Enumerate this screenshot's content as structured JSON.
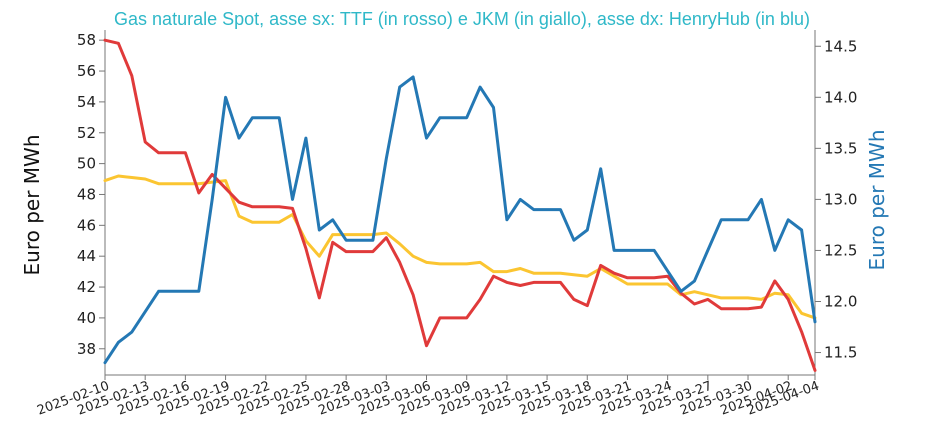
{
  "chart_data": {
    "type": "line",
    "title": "Gas naturale Spot, asse sx: TTF (in rosso) e JKM (in giallo), asse dx: HenryHub (in blu)",
    "ylabel": "Euro per MWh",
    "ylabel_right": "Euro per MWh",
    "ylim": [
      36.3,
      58.4
    ],
    "ylim_right": [
      11.28,
      14.62
    ],
    "yticks": [
      "38",
      "40",
      "42",
      "44",
      "46",
      "48",
      "50",
      "52",
      "54",
      "56",
      "58"
    ],
    "yticks_right": [
      "11.5",
      "12.0",
      "12.5",
      "13.0",
      "13.5",
      "14.0",
      "14.5"
    ],
    "xticks": [
      "2025-02-10",
      "2025-02-13",
      "2025-02-16",
      "2025-02-19",
      "2025-02-22",
      "2025-02-25",
      "2025-02-28",
      "2025-03-03",
      "2025-03-06",
      "2025-03-09",
      "2025-03-12",
      "2025-03-15",
      "2025-03-18",
      "2025-03-21",
      "2025-03-24",
      "2025-03-27",
      "2025-03-30",
      "2025-04-02",
      "2025-04-04"
    ],
    "x_range": [
      "2025-02-10",
      "2025-04-04"
    ],
    "grid": false,
    "colors": {
      "ttf": "#e03a3a",
      "jkm": "#fbc531",
      "henryhub": "#2478b4",
      "title": "#2fb8c8"
    },
    "series": [
      {
        "key": "ttf",
        "axis": "left",
        "points": [
          [
            "2025-02-10",
            58.0
          ],
          [
            "2025-02-11",
            57.8
          ],
          [
            "2025-02-12",
            55.7
          ],
          [
            "2025-02-13",
            51.4
          ],
          [
            "2025-02-14",
            50.7
          ],
          [
            "2025-02-15",
            50.7
          ],
          [
            "2025-02-16",
            50.7
          ],
          [
            "2025-02-17",
            48.1
          ],
          [
            "2025-02-18",
            49.3
          ],
          [
            "2025-02-19",
            48.4
          ],
          [
            "2025-02-20",
            47.5
          ],
          [
            "2025-02-21",
            47.2
          ],
          [
            "2025-02-22",
            47.2
          ],
          [
            "2025-02-23",
            47.2
          ],
          [
            "2025-02-24",
            47.1
          ],
          [
            "2025-02-25",
            44.5
          ],
          [
            "2025-02-26",
            41.3
          ],
          [
            "2025-02-27",
            44.9
          ],
          [
            "2025-02-28",
            44.3
          ],
          [
            "2025-03-01",
            44.3
          ],
          [
            "2025-03-02",
            44.3
          ],
          [
            "2025-03-03",
            45.2
          ],
          [
            "2025-03-04",
            43.6
          ],
          [
            "2025-03-05",
            41.5
          ],
          [
            "2025-03-06",
            38.2
          ],
          [
            "2025-03-07",
            40.0
          ],
          [
            "2025-03-08",
            40.0
          ],
          [
            "2025-03-09",
            40.0
          ],
          [
            "2025-03-10",
            41.2
          ],
          [
            "2025-03-11",
            42.7
          ],
          [
            "2025-03-12",
            42.3
          ],
          [
            "2025-03-13",
            42.1
          ],
          [
            "2025-03-14",
            42.3
          ],
          [
            "2025-03-15",
            42.3
          ],
          [
            "2025-03-16",
            42.3
          ],
          [
            "2025-03-17",
            41.2
          ],
          [
            "2025-03-18",
            40.8
          ],
          [
            "2025-03-19",
            43.4
          ],
          [
            "2025-03-20",
            42.9
          ],
          [
            "2025-03-21",
            42.6
          ],
          [
            "2025-03-22",
            42.6
          ],
          [
            "2025-03-23",
            42.6
          ],
          [
            "2025-03-24",
            42.7
          ],
          [
            "2025-03-25",
            41.6
          ],
          [
            "2025-03-26",
            40.9
          ],
          [
            "2025-03-27",
            41.2
          ],
          [
            "2025-03-28",
            40.6
          ],
          [
            "2025-03-29",
            40.6
          ],
          [
            "2025-03-30",
            40.6
          ],
          [
            "2025-03-31",
            40.7
          ],
          [
            "2025-04-01",
            42.4
          ],
          [
            "2025-04-02",
            41.2
          ],
          [
            "2025-04-03",
            39.1
          ],
          [
            "2025-04-04",
            36.6
          ]
        ]
      },
      {
        "key": "jkm",
        "axis": "left",
        "points": [
          [
            "2025-02-10",
            48.9
          ],
          [
            "2025-02-11",
            49.2
          ],
          [
            "2025-02-12",
            49.1
          ],
          [
            "2025-02-13",
            49.0
          ],
          [
            "2025-02-14",
            48.7
          ],
          [
            "2025-02-15",
            48.7
          ],
          [
            "2025-02-16",
            48.7
          ],
          [
            "2025-02-17",
            48.7
          ],
          [
            "2025-02-18",
            48.8
          ],
          [
            "2025-02-19",
            48.9
          ],
          [
            "2025-02-20",
            46.6
          ],
          [
            "2025-02-21",
            46.2
          ],
          [
            "2025-02-22",
            46.2
          ],
          [
            "2025-02-23",
            46.2
          ],
          [
            "2025-02-24",
            46.7
          ],
          [
            "2025-02-25",
            45.0
          ],
          [
            "2025-02-26",
            44.0
          ],
          [
            "2025-02-27",
            45.4
          ],
          [
            "2025-02-28",
            45.4
          ],
          [
            "2025-03-01",
            45.4
          ],
          [
            "2025-03-02",
            45.4
          ],
          [
            "2025-03-03",
            45.5
          ],
          [
            "2025-03-04",
            44.8
          ],
          [
            "2025-03-05",
            44.0
          ],
          [
            "2025-03-06",
            43.6
          ],
          [
            "2025-03-07",
            43.5
          ],
          [
            "2025-03-08",
            43.5
          ],
          [
            "2025-03-09",
            43.5
          ],
          [
            "2025-03-10",
            43.6
          ],
          [
            "2025-03-11",
            43.0
          ],
          [
            "2025-03-12",
            43.0
          ],
          [
            "2025-03-13",
            43.2
          ],
          [
            "2025-03-14",
            42.9
          ],
          [
            "2025-03-15",
            42.9
          ],
          [
            "2025-03-16",
            42.9
          ],
          [
            "2025-03-17",
            42.8
          ],
          [
            "2025-03-18",
            42.7
          ],
          [
            "2025-03-19",
            43.2
          ],
          [
            "2025-03-20",
            42.7
          ],
          [
            "2025-03-21",
            42.2
          ],
          [
            "2025-03-22",
            42.2
          ],
          [
            "2025-03-23",
            42.2
          ],
          [
            "2025-03-24",
            42.2
          ],
          [
            "2025-03-25",
            41.5
          ],
          [
            "2025-03-26",
            41.7
          ],
          [
            "2025-03-27",
            41.5
          ],
          [
            "2025-03-28",
            41.3
          ],
          [
            "2025-03-29",
            41.3
          ],
          [
            "2025-03-30",
            41.3
          ],
          [
            "2025-03-31",
            41.2
          ],
          [
            "2025-04-01",
            41.6
          ],
          [
            "2025-04-02",
            41.5
          ],
          [
            "2025-04-03",
            40.3
          ],
          [
            "2025-04-04",
            40.0
          ]
        ]
      },
      {
        "key": "henryhub",
        "axis": "right",
        "points": [
          [
            "2025-02-10",
            11.4
          ],
          [
            "2025-02-11",
            11.6
          ],
          [
            "2025-02-12",
            11.7
          ],
          [
            "2025-02-13",
            11.9
          ],
          [
            "2025-02-14",
            12.1
          ],
          [
            "2025-02-15",
            12.1
          ],
          [
            "2025-02-16",
            12.1
          ],
          [
            "2025-02-17",
            12.1
          ],
          [
            "2025-02-18",
            13.0
          ],
          [
            "2025-02-19",
            14.0
          ],
          [
            "2025-02-20",
            13.6
          ],
          [
            "2025-02-21",
            13.8
          ],
          [
            "2025-02-22",
            13.8
          ],
          [
            "2025-02-23",
            13.8
          ],
          [
            "2025-02-24",
            13.0
          ],
          [
            "2025-02-25",
            13.6
          ],
          [
            "2025-02-26",
            12.7
          ],
          [
            "2025-02-27",
            12.8
          ],
          [
            "2025-02-28",
            12.6
          ],
          [
            "2025-03-01",
            12.6
          ],
          [
            "2025-03-02",
            12.6
          ],
          [
            "2025-03-03",
            13.4
          ],
          [
            "2025-03-04",
            14.1
          ],
          [
            "2025-03-05",
            14.2
          ],
          [
            "2025-03-06",
            13.6
          ],
          [
            "2025-03-07",
            13.8
          ],
          [
            "2025-03-08",
            13.8
          ],
          [
            "2025-03-09",
            13.8
          ],
          [
            "2025-03-10",
            14.1
          ],
          [
            "2025-03-11",
            13.9
          ],
          [
            "2025-03-12",
            12.8
          ],
          [
            "2025-03-13",
            13.0
          ],
          [
            "2025-03-14",
            12.9
          ],
          [
            "2025-03-15",
            12.9
          ],
          [
            "2025-03-16",
            12.9
          ],
          [
            "2025-03-17",
            12.6
          ],
          [
            "2025-03-18",
            12.7
          ],
          [
            "2025-03-19",
            13.3
          ],
          [
            "2025-03-20",
            12.5
          ],
          [
            "2025-03-21",
            12.5
          ],
          [
            "2025-03-22",
            12.5
          ],
          [
            "2025-03-23",
            12.5
          ],
          [
            "2025-03-24",
            12.3
          ],
          [
            "2025-03-25",
            12.1
          ],
          [
            "2025-03-26",
            12.2
          ],
          [
            "2025-03-27",
            12.5
          ],
          [
            "2025-03-28",
            12.8
          ],
          [
            "2025-03-29",
            12.8
          ],
          [
            "2025-03-30",
            12.8
          ],
          [
            "2025-03-31",
            13.0
          ],
          [
            "2025-04-01",
            12.5
          ],
          [
            "2025-04-02",
            12.8
          ],
          [
            "2025-04-03",
            12.7
          ],
          [
            "2025-04-04",
            11.8
          ]
        ]
      }
    ]
  }
}
